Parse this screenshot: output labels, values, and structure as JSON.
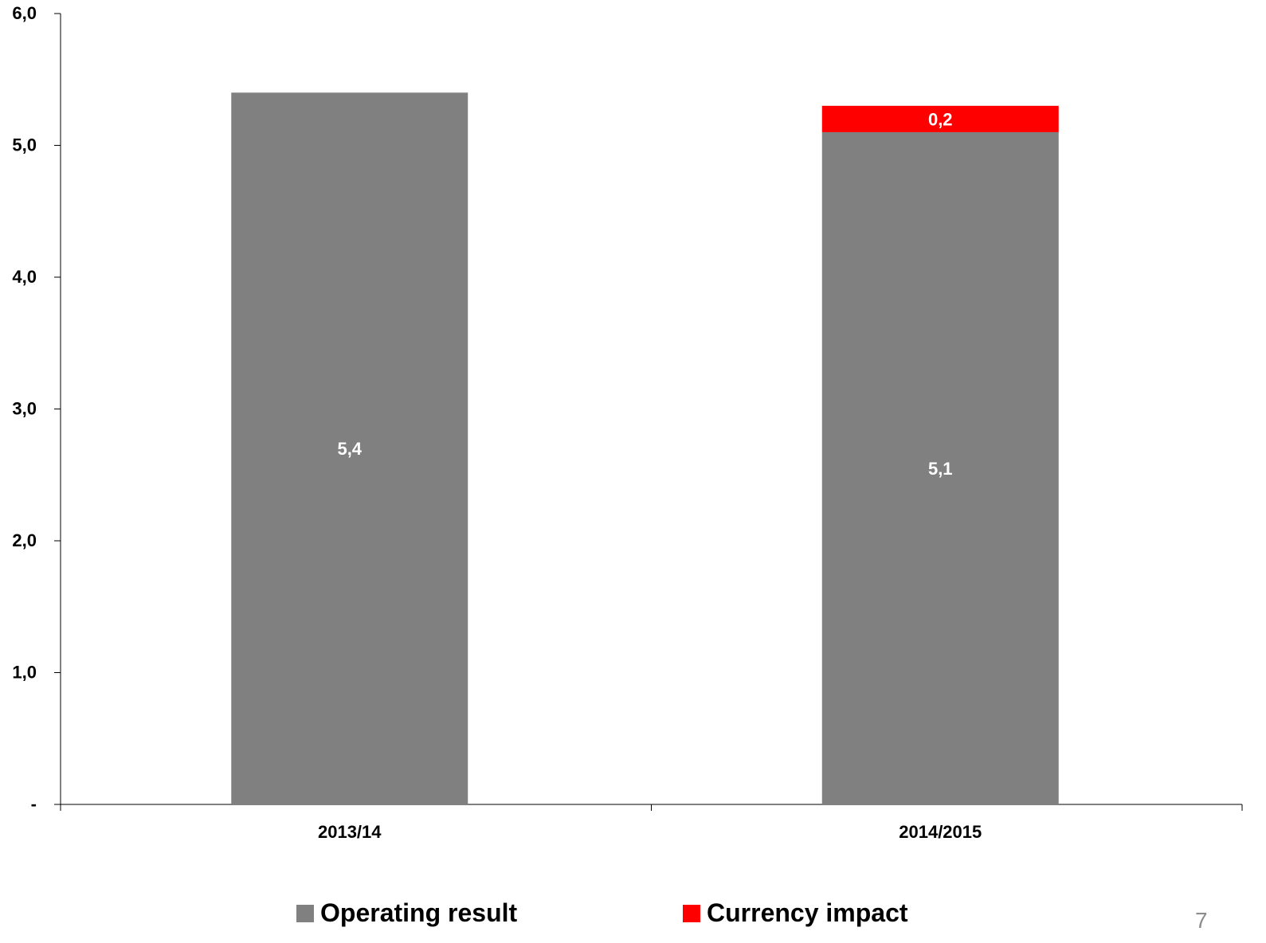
{
  "chart_data": {
    "type": "bar",
    "stacked": true,
    "categories": [
      "2013/14",
      "2014/2015"
    ],
    "series": [
      {
        "name": "Operating result",
        "values": [
          5.4,
          5.1
        ],
        "labels": [
          "5,4",
          "5,1"
        ],
        "color": "#808080"
      },
      {
        "name": "Currency impact",
        "values": [
          0,
          0.2
        ],
        "labels": [
          "",
          "0,2"
        ],
        "color": "#ff0000"
      }
    ],
    "ylim": [
      0,
      6
    ],
    "yticks": [
      0,
      1,
      2,
      3,
      4,
      5,
      6
    ],
    "ytick_labels": [
      "-",
      "1,0",
      "2,0",
      "3,0",
      "4,0",
      "5,0",
      "6,0"
    ],
    "grid": false,
    "legend_position": "bottom",
    "title": "",
    "xlabel": "",
    "ylabel": ""
  },
  "legend": [
    {
      "label": "Operating result",
      "color": "#808080"
    },
    {
      "label": "Currency impact",
      "color": "#ff0000"
    }
  ],
  "page_number": "7"
}
